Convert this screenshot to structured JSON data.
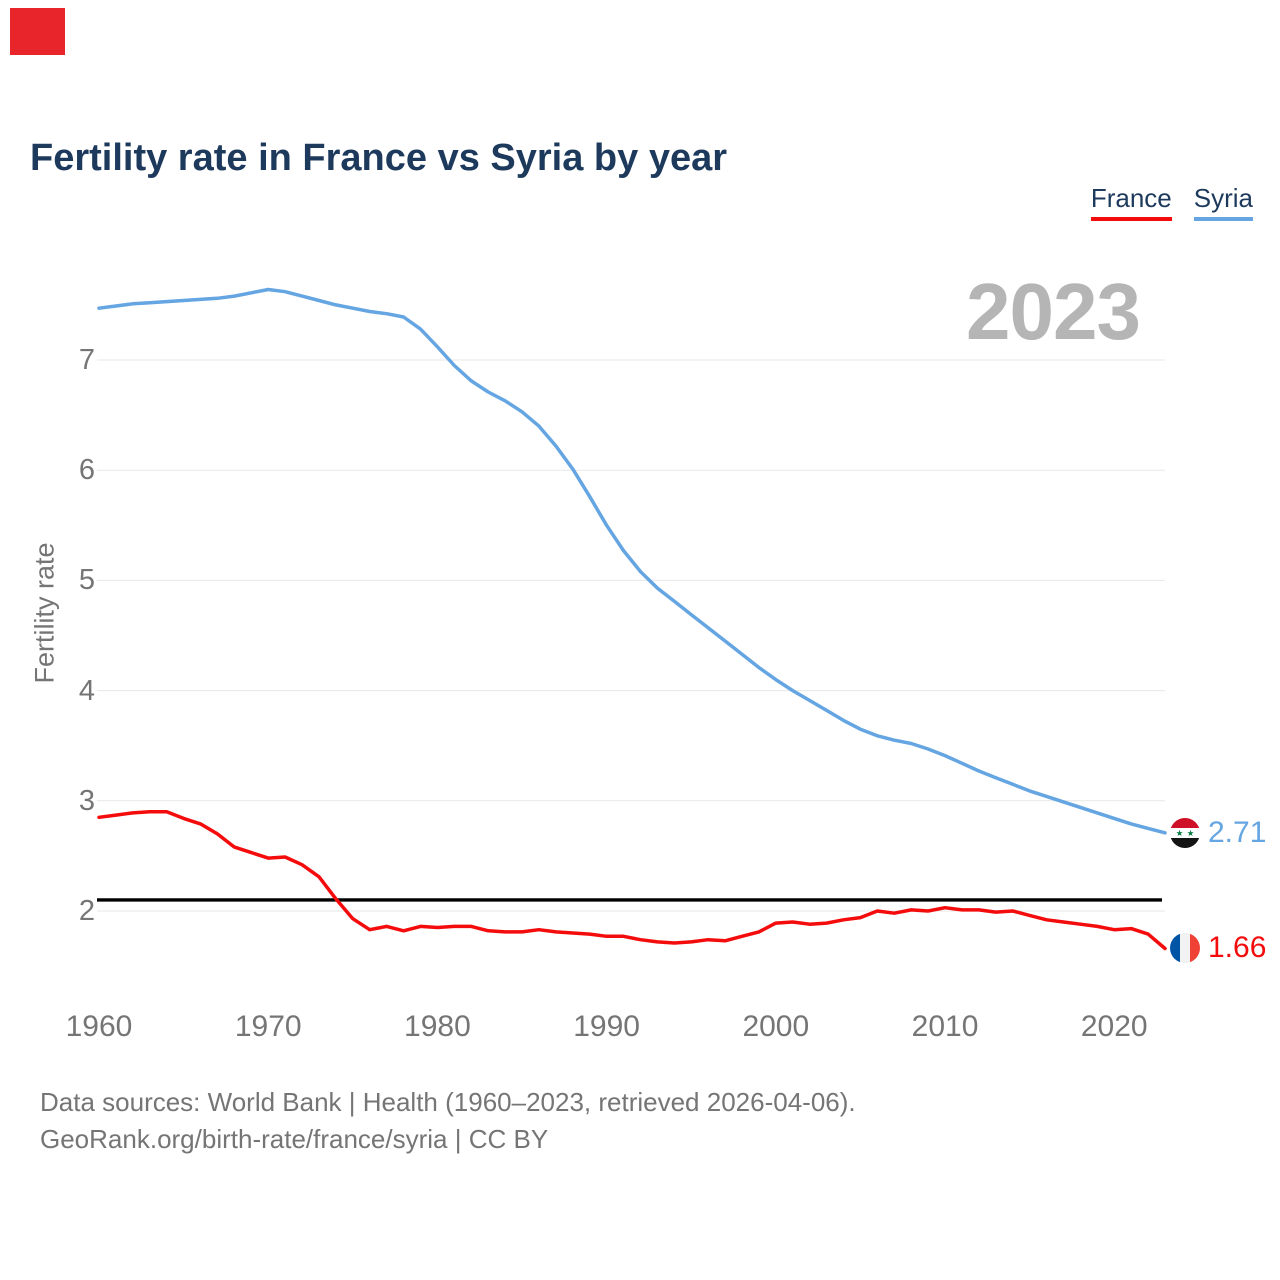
{
  "page": {
    "marker_color": "#e8252a",
    "background": "#ffffff",
    "title_color": "#1d3a5c",
    "axis_text_color": "#757575",
    "grid_color": "#e7e7e7",
    "watermark_color": "#b5b5b5"
  },
  "header": {
    "title": "Fertility rate in France vs Syria by year"
  },
  "legend": [
    {
      "label": "France",
      "color": "#f40c0c"
    },
    {
      "label": "Syria",
      "color": "#64a5e2"
    }
  ],
  "watermark": "2023",
  "chart_data": {
    "type": "line",
    "title": "Fertility rate in France vs Syria by year",
    "xlabel": "",
    "ylabel": "Fertility rate",
    "xlim": [
      1960,
      2023
    ],
    "ylim": [
      1.5,
      7.9
    ],
    "x_ticks": [
      1960,
      1970,
      1980,
      1990,
      2000,
      2010,
      2020
    ],
    "y_ticks": [
      2,
      3,
      4,
      5,
      6,
      7
    ],
    "grid": "horizontal",
    "legend_position": "top-right",
    "refline": {
      "value": 2.1,
      "color": "#000000",
      "label": ""
    },
    "start_year": 1960,
    "series": [
      {
        "name": "Syria",
        "color": "#64a5e2",
        "end_label": "2.71",
        "flag": "syria",
        "values": [
          7.47,
          7.49,
          7.51,
          7.52,
          7.53,
          7.54,
          7.55,
          7.56,
          7.58,
          7.61,
          7.64,
          7.62,
          7.58,
          7.54,
          7.5,
          7.47,
          7.44,
          7.42,
          7.39,
          7.28,
          7.12,
          6.95,
          6.81,
          6.71,
          6.63,
          6.53,
          6.4,
          6.22,
          6.01,
          5.76,
          5.5,
          5.27,
          5.08,
          4.93,
          4.81,
          4.69,
          4.57,
          4.45,
          4.33,
          4.21,
          4.1,
          4.0,
          3.91,
          3.82,
          3.73,
          3.65,
          3.59,
          3.55,
          3.52,
          3.47,
          3.41,
          3.34,
          3.27,
          3.21,
          3.15,
          3.09,
          3.04,
          2.99,
          2.94,
          2.89,
          2.84,
          2.79,
          2.75,
          2.71
        ]
      },
      {
        "name": "France",
        "color": "#f40c0c",
        "end_label": "1.66",
        "flag": "france",
        "values": [
          2.85,
          2.87,
          2.89,
          2.9,
          2.9,
          2.84,
          2.79,
          2.7,
          2.58,
          2.53,
          2.48,
          2.49,
          2.42,
          2.31,
          2.11,
          1.93,
          1.83,
          1.86,
          1.82,
          1.86,
          1.85,
          1.86,
          1.86,
          1.82,
          1.81,
          1.81,
          1.83,
          1.81,
          1.8,
          1.79,
          1.77,
          1.77,
          1.74,
          1.72,
          1.71,
          1.72,
          1.74,
          1.73,
          1.77,
          1.81,
          1.89,
          1.9,
          1.88,
          1.89,
          1.92,
          1.94,
          2.0,
          1.98,
          2.01,
          2.0,
          2.03,
          2.01,
          2.01,
          1.99,
          2.0,
          1.96,
          1.92,
          1.9,
          1.88,
          1.86,
          1.83,
          1.84,
          1.79,
          1.66
        ]
      }
    ]
  },
  "footer": {
    "line1": "Data sources: World Bank | Health (1960–2023, retrieved 2026-04-06).",
    "line2": "GeoRank.org/birth-rate/france/syria | CC BY"
  }
}
